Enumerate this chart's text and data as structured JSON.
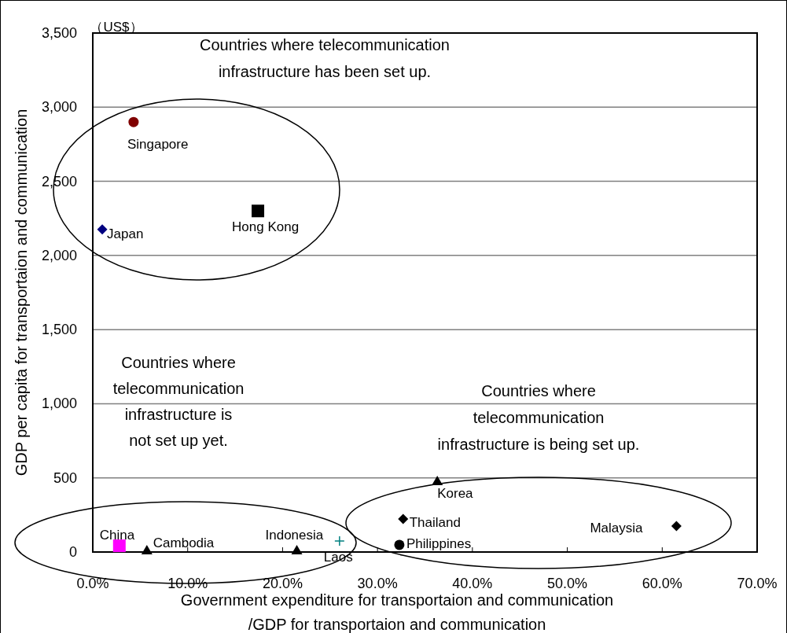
{
  "chart_data": {
    "type": "scatter",
    "xlabel": "Government expenditure for transportaion and communication\n/GDP for transportaion and communication",
    "ylabel": "GDP per capita for transportaion and communication",
    "xlim": [
      0,
      70
    ],
    "xticks": [
      {
        "value": 0,
        "label": "0.0%"
      },
      {
        "value": 10,
        "label": "10.0%"
      },
      {
        "value": 20,
        "label": "20.0%"
      },
      {
        "value": 30,
        "label": "30.0%"
      },
      {
        "value": 40,
        "label": "40.0%"
      },
      {
        "value": 50,
        "label": "50.0%"
      },
      {
        "value": 60,
        "label": "60.0%"
      },
      {
        "value": 70,
        "label": "70.0%"
      }
    ],
    "ylim": [
      0,
      3500
    ],
    "yticks": [
      {
        "value": 0,
        "label": "0"
      },
      {
        "value": 500,
        "label": "500"
      },
      {
        "value": 1000,
        "label": "1,000"
      },
      {
        "value": 1500,
        "label": "1,500"
      },
      {
        "value": 2000,
        "label": "2,000"
      },
      {
        "value": 2500,
        "label": "2,500"
      },
      {
        "value": 3000,
        "label": "3,000"
      },
      {
        "value": 3500,
        "label": "3,500"
      }
    ],
    "grid": "y",
    "annotations": [
      "（US$）",
      "Countries where telecommunication\ninfrastructure has been set up.",
      "Countries where\ntelecommunication\ninfrastructure is\nnot set up yet.",
      "Countries where\ntelecommunication\ninfrastructure is being set up."
    ],
    "series": [
      {
        "name": "Singapore",
        "color": "#800000",
        "marker": "circle",
        "x": [
          4.3
        ],
        "values": [
          2900
        ]
      },
      {
        "name": "Japan",
        "color": "#000080",
        "marker": "diamond",
        "x": [
          1.0
        ],
        "values": [
          2175
        ]
      },
      {
        "name": "Hong Kong",
        "color": "#000000",
        "marker": "square",
        "x": [
          17.4
        ],
        "values": [
          2300
        ]
      },
      {
        "name": "China",
        "color": "#ff00ff",
        "marker": "square",
        "x": [
          2.8
        ],
        "values": [
          42
        ]
      },
      {
        "name": "Cambodia",
        "color": "#000000",
        "marker": "triangle",
        "x": [
          5.7
        ],
        "values": [
          10
        ]
      },
      {
        "name": "Indonesia",
        "color": "#000000",
        "marker": "triangle",
        "x": [
          21.5
        ],
        "values": [
          10
        ]
      },
      {
        "name": "Laos",
        "color": "#008080",
        "marker": "cross",
        "x": [
          26.0
        ],
        "values": [
          74
        ]
      },
      {
        "name": "Philippines",
        "color": "#000000",
        "marker": "circle",
        "x": [
          32.3
        ],
        "values": [
          48
        ]
      },
      {
        "name": "Thailand",
        "color": "#000000",
        "marker": "diamond",
        "x": [
          32.7
        ],
        "values": [
          223
        ]
      },
      {
        "name": "Korea",
        "color": "#000000",
        "marker": "triangle",
        "x": [
          36.3
        ],
        "values": [
          477
        ]
      },
      {
        "name": "Malaysia",
        "color": "#000000",
        "marker": "diamond",
        "x": [
          61.5
        ],
        "values": [
          175
        ]
      }
    ]
  }
}
